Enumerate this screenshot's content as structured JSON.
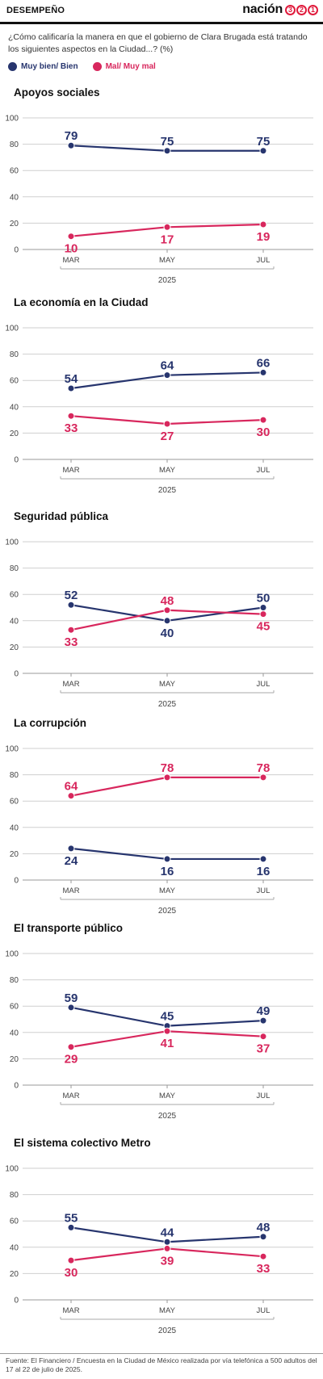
{
  "header": {
    "section": "DESEMPEÑO",
    "logo_word": "nación",
    "logo_digits": [
      "3",
      "2",
      "1"
    ],
    "logo_color": "#e01b3c"
  },
  "question": "¿Cómo calificaría la manera en que el gobierno de Clara Brugada está tratando los siguientes aspectos en la Ciudad...?  (%)",
  "legend": [
    {
      "label": "Muy bien/ Bien",
      "color": "#27356e"
    },
    {
      "label": "Mal/ Muy mal",
      "color": "#d8275d"
    }
  ],
  "footer": "Fuente: El Financiero / Encuesta en la Ciudad de México realizada por vía telefónica a 500 adultos del 17 al 22 de julio de 2025.",
  "chart_data": [
    {
      "type": "line",
      "title": "Apoyos sociales",
      "categories": [
        "MAR",
        "MAY",
        "JUL"
      ],
      "xgroup": "2025",
      "ylim": [
        0,
        100
      ],
      "yticks": [
        0,
        20,
        40,
        60,
        80,
        100
      ],
      "grid": true,
      "series": [
        {
          "name": "Muy bien/ Bien",
          "values": [
            79,
            75,
            75
          ]
        },
        {
          "name": "Mal/ Muy mal",
          "values": [
            10,
            17,
            19
          ]
        }
      ]
    },
    {
      "type": "line",
      "title": "La economía en la Ciudad",
      "categories": [
        "MAR",
        "MAY",
        "JUL"
      ],
      "xgroup": "2025",
      "ylim": [
        0,
        100
      ],
      "yticks": [
        0,
        20,
        40,
        60,
        80,
        100
      ],
      "grid": true,
      "series": [
        {
          "name": "Muy bien/ Bien",
          "values": [
            54,
            64,
            66
          ]
        },
        {
          "name": "Mal/ Muy mal",
          "values": [
            33,
            27,
            30
          ]
        }
      ]
    },
    {
      "type": "line",
      "title": "Seguridad pública",
      "categories": [
        "MAR",
        "MAY",
        "JUL"
      ],
      "xgroup": "2025",
      "ylim": [
        0,
        100
      ],
      "yticks": [
        0,
        20,
        40,
        60,
        80,
        100
      ],
      "grid": true,
      "series": [
        {
          "name": "Muy bien/ Bien",
          "values": [
            52,
            40,
            50
          ]
        },
        {
          "name": "Mal/ Muy mal",
          "values": [
            33,
            48,
            45
          ]
        }
      ]
    },
    {
      "type": "line",
      "title": "La corrupción",
      "categories": [
        "MAR",
        "MAY",
        "JUL"
      ],
      "xgroup": "2025",
      "ylim": [
        0,
        100
      ],
      "yticks": [
        0,
        20,
        40,
        60,
        80,
        100
      ],
      "grid": true,
      "series": [
        {
          "name": "Muy bien/ Bien",
          "values": [
            24,
            16,
            16
          ]
        },
        {
          "name": "Mal/ Muy mal",
          "values": [
            64,
            78,
            78
          ]
        }
      ]
    },
    {
      "type": "line",
      "title": "El transporte público",
      "categories": [
        "MAR",
        "MAY",
        "JUL"
      ],
      "xgroup": "2025",
      "ylim": [
        0,
        100
      ],
      "yticks": [
        0,
        20,
        40,
        60,
        80,
        100
      ],
      "grid": true,
      "series": [
        {
          "name": "Muy bien/ Bien",
          "values": [
            59,
            45,
            49
          ]
        },
        {
          "name": "Mal/ Muy mal",
          "values": [
            29,
            41,
            37
          ]
        }
      ]
    },
    {
      "type": "line",
      "title": "El sistema colectivo Metro",
      "categories": [
        "MAR",
        "MAY",
        "JUL"
      ],
      "xgroup": "2025",
      "ylim": [
        0,
        100
      ],
      "yticks": [
        0,
        20,
        40,
        60,
        80,
        100
      ],
      "grid": true,
      "series": [
        {
          "name": "Muy bien/ Bien",
          "values": [
            55,
            44,
            48
          ]
        },
        {
          "name": "Mal/ Muy mal",
          "values": [
            30,
            39,
            33
          ]
        }
      ]
    }
  ]
}
